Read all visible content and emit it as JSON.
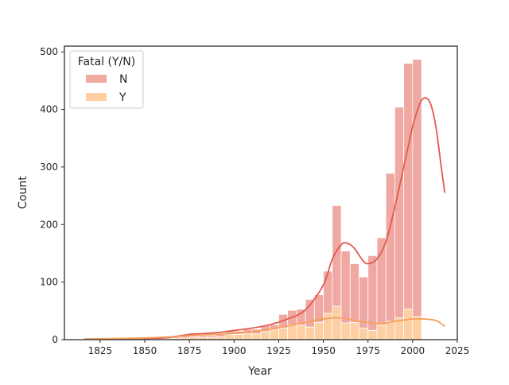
{
  "chart_data": {
    "type": "bar",
    "xlabel": "Year",
    "ylabel": "Count",
    "xlim": [
      1805,
      2025
    ],
    "ylim": [
      0,
      510
    ],
    "xticks": [
      1825,
      1850,
      1875,
      1900,
      1925,
      1950,
      1975,
      2000,
      2025
    ],
    "yticks": [
      0,
      100,
      200,
      300,
      400,
      500
    ],
    "grid": false,
    "legend": {
      "title": "Fatal (Y/N)",
      "placement": "top-left"
    },
    "bins": [
      {
        "start": 1815.0,
        "end": 1820.0,
        "N": 0,
        "Y": 0
      },
      {
        "start": 1820.0,
        "end": 1825.0,
        "N": 0,
        "Y": 0
      },
      {
        "start": 1825.0,
        "end": 1830.0,
        "N": 0,
        "Y": 0
      },
      {
        "start": 1830.0,
        "end": 1835.0,
        "N": 0,
        "Y": 0
      },
      {
        "start": 1835.0,
        "end": 1840.0,
        "N": 1,
        "Y": 0
      },
      {
        "start": 1840.0,
        "end": 1845.0,
        "N": 1,
        "Y": 1
      },
      {
        "start": 1845.0,
        "end": 1850.0,
        "N": 1,
        "Y": 1
      },
      {
        "start": 1850.0,
        "end": 1855.0,
        "N": 1,
        "Y": 1
      },
      {
        "start": 1855.0,
        "end": 1860.0,
        "N": 2,
        "Y": 1
      },
      {
        "start": 1860.0,
        "end": 1865.0,
        "N": 2,
        "Y": 1
      },
      {
        "start": 1865.0,
        "end": 1870.0,
        "N": 3,
        "Y": 2
      },
      {
        "start": 1870.0,
        "end": 1875.0,
        "N": 3,
        "Y": 3
      },
      {
        "start": 1875.0,
        "end": 1880.0,
        "N": 7,
        "Y": 5
      },
      {
        "start": 1880.0,
        "end": 1885.0,
        "N": 3,
        "Y": 4
      },
      {
        "start": 1885.0,
        "end": 1890.0,
        "N": 3,
        "Y": 4
      },
      {
        "start": 1890.0,
        "end": 1895.0,
        "N": 4,
        "Y": 5
      },
      {
        "start": 1895.0,
        "end": 1900.0,
        "N": 6,
        "Y": 9
      },
      {
        "start": 1900.0,
        "end": 1905.0,
        "N": 6,
        "Y": 9
      },
      {
        "start": 1905.0,
        "end": 1910.0,
        "N": 8,
        "Y": 10
      },
      {
        "start": 1910.0,
        "end": 1915.0,
        "N": 8,
        "Y": 10
      },
      {
        "start": 1915.0,
        "end": 1920.0,
        "N": 11,
        "Y": 14
      },
      {
        "start": 1920.0,
        "end": 1925.0,
        "N": 9,
        "Y": 17
      },
      {
        "start": 1925.0,
        "end": 1930.0,
        "N": 24,
        "Y": 20
      },
      {
        "start": 1930.0,
        "end": 1935.0,
        "N": 25,
        "Y": 26
      },
      {
        "start": 1935.0,
        "end": 1940.0,
        "N": 28,
        "Y": 25
      },
      {
        "start": 1940.0,
        "end": 1945.0,
        "N": 48,
        "Y": 22
      },
      {
        "start": 1945.0,
        "end": 1950.0,
        "N": 48,
        "Y": 30
      },
      {
        "start": 1950.0,
        "end": 1955.0,
        "N": 73,
        "Y": 46
      },
      {
        "start": 1955.0,
        "end": 1960.0,
        "N": 175,
        "Y": 58
      },
      {
        "start": 1960.0,
        "end": 1965.0,
        "N": 125,
        "Y": 29
      },
      {
        "start": 1965.0,
        "end": 1970.0,
        "N": 102,
        "Y": 30
      },
      {
        "start": 1970.0,
        "end": 1975.0,
        "N": 89,
        "Y": 20
      },
      {
        "start": 1975.0,
        "end": 1980.0,
        "N": 130,
        "Y": 16
      },
      {
        "start": 1980.0,
        "end": 1985.0,
        "N": 152,
        "Y": 25
      },
      {
        "start": 1985.0,
        "end": 1990.0,
        "N": 257,
        "Y": 32
      },
      {
        "start": 1990.0,
        "end": 1995.0,
        "N": 366,
        "Y": 38
      },
      {
        "start": 1995.0,
        "end": 2000.0,
        "N": 427,
        "Y": 53
      },
      {
        "start": 2000.0,
        "end": 2005.0,
        "N": 447,
        "Y": 40
      },
      {
        "start": 2005.0,
        "end": 2010.0,
        "N": 0,
        "Y": 0
      }
    ],
    "series": [
      {
        "name": "N",
        "bar_color": "#f0a8a2",
        "kde_color": "#e05a4e",
        "kde": [
          [
            1816,
            1
          ],
          [
            1840,
            2
          ],
          [
            1860,
            3
          ],
          [
            1875,
            9
          ],
          [
            1890,
            12
          ],
          [
            1900,
            16
          ],
          [
            1910,
            20
          ],
          [
            1920,
            26
          ],
          [
            1930,
            36
          ],
          [
            1940,
            52
          ],
          [
            1950,
            95
          ],
          [
            1955,
            140
          ],
          [
            1960,
            165
          ],
          [
            1963,
            168
          ],
          [
            1967,
            160
          ],
          [
            1972,
            138
          ],
          [
            1975,
            132
          ],
          [
            1980,
            140
          ],
          [
            1985,
            170
          ],
          [
            1990,
            230
          ],
          [
            1995,
            300
          ],
          [
            2000,
            370
          ],
          [
            2004,
            410
          ],
          [
            2007,
            420
          ],
          [
            2010,
            410
          ],
          [
            2013,
            370
          ],
          [
            2016,
            300
          ],
          [
            2018,
            255
          ]
        ]
      },
      {
        "name": "Y",
        "bar_color": "#fdcfa3",
        "kde_color": "#f7a05c",
        "kde": [
          [
            1816,
            1
          ],
          [
            1850,
            3
          ],
          [
            1870,
            6
          ],
          [
            1880,
            8
          ],
          [
            1890,
            9
          ],
          [
            1900,
            11
          ],
          [
            1910,
            14
          ],
          [
            1920,
            18
          ],
          [
            1930,
            24
          ],
          [
            1940,
            30
          ],
          [
            1950,
            36
          ],
          [
            1957,
            38
          ],
          [
            1962,
            37
          ],
          [
            1970,
            32
          ],
          [
            1975,
            30
          ],
          [
            1980,
            28
          ],
          [
            1985,
            29
          ],
          [
            1990,
            32
          ],
          [
            1995,
            34
          ],
          [
            2000,
            36
          ],
          [
            2005,
            36
          ],
          [
            2010,
            35
          ],
          [
            2014,
            32
          ],
          [
            2018,
            23
          ]
        ]
      }
    ]
  }
}
